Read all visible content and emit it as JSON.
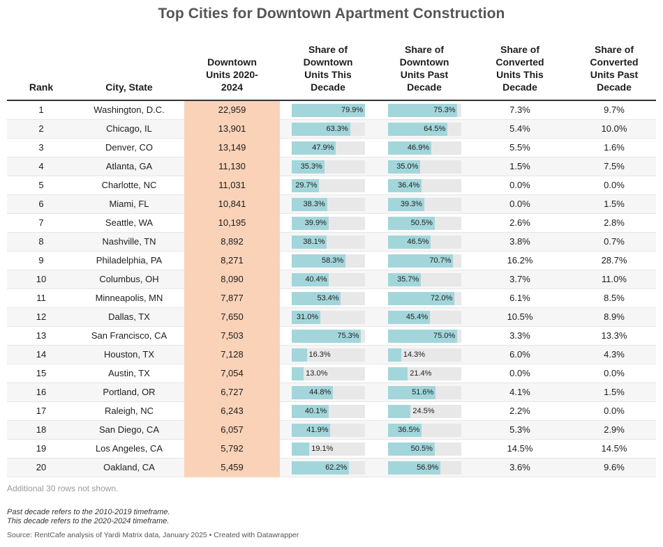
{
  "title": "Top Cities for Downtown Apartment Construction",
  "columns": {
    "rank": "Rank",
    "city": "City, State",
    "units": [
      "Downtown",
      "Units 2020-",
      "2024"
    ],
    "share_this": [
      "Share of",
      "Downtown",
      "Units This",
      "Decade"
    ],
    "share_past": [
      "Share of",
      "Downtown",
      "Units Past",
      "Decade"
    ],
    "conv_this": [
      "Share of",
      "Converted",
      "Units This",
      "Decade"
    ],
    "conv_past": [
      "Share of",
      "Converted",
      "Units Past",
      "Decade"
    ]
  },
  "chart_data": {
    "type": "table",
    "rows": [
      {
        "rank": "1",
        "city": "Washington, D.C.",
        "units": "22,959",
        "share_this": 79.9,
        "share_past": 75.3,
        "conv_this": "7.3%",
        "conv_past": "9.7%"
      },
      {
        "rank": "2",
        "city": "Chicago, IL",
        "units": "13,901",
        "share_this": 63.3,
        "share_past": 64.5,
        "conv_this": "5.4%",
        "conv_past": "10.0%"
      },
      {
        "rank": "3",
        "city": "Denver, CO",
        "units": "13,149",
        "share_this": 47.9,
        "share_past": 46.9,
        "conv_this": "5.5%",
        "conv_past": "1.6%"
      },
      {
        "rank": "4",
        "city": "Atlanta, GA",
        "units": "11,130",
        "share_this": 35.3,
        "share_past": 35.0,
        "conv_this": "1.5%",
        "conv_past": "7.5%"
      },
      {
        "rank": "5",
        "city": "Charlotte, NC",
        "units": "11,031",
        "share_this": 29.7,
        "share_past": 36.4,
        "conv_this": "0.0%",
        "conv_past": "0.0%"
      },
      {
        "rank": "6",
        "city": "Miami, FL",
        "units": "10,841",
        "share_this": 38.3,
        "share_past": 39.3,
        "conv_this": "0.0%",
        "conv_past": "1.5%"
      },
      {
        "rank": "7",
        "city": "Seattle, WA",
        "units": "10,195",
        "share_this": 39.9,
        "share_past": 50.5,
        "conv_this": "2.6%",
        "conv_past": "2.8%"
      },
      {
        "rank": "8",
        "city": "Nashville, TN",
        "units": "8,892",
        "share_this": 38.1,
        "share_past": 46.5,
        "conv_this": "3.8%",
        "conv_past": "0.7%"
      },
      {
        "rank": "9",
        "city": "Philadelphia, PA",
        "units": "8,271",
        "share_this": 58.3,
        "share_past": 70.7,
        "conv_this": "16.2%",
        "conv_past": "28.7%"
      },
      {
        "rank": "10",
        "city": "Columbus, OH",
        "units": "8,090",
        "share_this": 40.4,
        "share_past": 35.7,
        "conv_this": "3.7%",
        "conv_past": "11.0%"
      },
      {
        "rank": "11",
        "city": "Minneapolis, MN",
        "units": "7,877",
        "share_this": 53.4,
        "share_past": 72.0,
        "conv_this": "6.1%",
        "conv_past": "8.5%"
      },
      {
        "rank": "12",
        "city": "Dallas, TX",
        "units": "7,650",
        "share_this": 31.0,
        "share_past": 45.4,
        "conv_this": "10.5%",
        "conv_past": "8.9%"
      },
      {
        "rank": "13",
        "city": "San Francisco, CA",
        "units": "7,503",
        "share_this": 75.3,
        "share_past": 75.0,
        "conv_this": "3.3%",
        "conv_past": "13.3%"
      },
      {
        "rank": "14",
        "city": "Houston, TX",
        "units": "7,128",
        "share_this": 16.3,
        "share_past": 14.3,
        "conv_this": "6.0%",
        "conv_past": "4.3%"
      },
      {
        "rank": "15",
        "city": "Austin, TX",
        "units": "7,054",
        "share_this": 13.0,
        "share_past": 21.4,
        "conv_this": "0.0%",
        "conv_past": "0.0%"
      },
      {
        "rank": "16",
        "city": "Portland, OR",
        "units": "6,727",
        "share_this": 44.8,
        "share_past": 51.6,
        "conv_this": "4.1%",
        "conv_past": "1.5%"
      },
      {
        "rank": "17",
        "city": "Raleigh, NC",
        "units": "6,243",
        "share_this": 40.1,
        "share_past": 24.5,
        "conv_this": "2.2%",
        "conv_past": "0.0%"
      },
      {
        "rank": "18",
        "city": "San Diego, CA",
        "units": "6,057",
        "share_this": 41.9,
        "share_past": 36.5,
        "conv_this": "5.3%",
        "conv_past": "2.9%"
      },
      {
        "rank": "19",
        "city": "Los Angeles, CA",
        "units": "5,792",
        "share_this": 19.1,
        "share_past": 50.5,
        "conv_this": "14.5%",
        "conv_past": "14.5%"
      },
      {
        "rank": "20",
        "city": "Oakland, CA",
        "units": "5,459",
        "share_this": 62.2,
        "share_past": 56.9,
        "conv_this": "3.6%",
        "conv_past": "9.6%"
      }
    ]
  },
  "colors": {
    "units_highlight": "#f9d2b8",
    "bar_fill": "#a3d6db",
    "bar_track": "#e8e8e8"
  },
  "rows_note": "Additional 30 rows not shown.",
  "footnotes": [
    "Past decade refers to the 2010-2019 timeframe.",
    "This decade refers to the 2020-2024 timeframe."
  ],
  "source": "Source: RentCafe analysis of Yardi Matrix data, January 2025 • Created with Datawrapper"
}
